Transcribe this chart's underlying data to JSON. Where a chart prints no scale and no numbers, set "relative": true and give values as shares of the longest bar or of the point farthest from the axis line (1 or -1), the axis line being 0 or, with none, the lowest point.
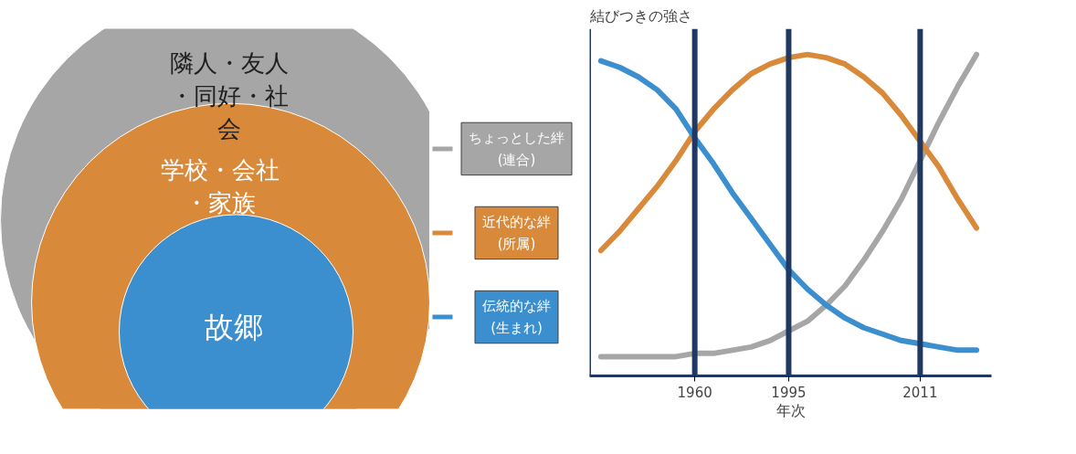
{
  "chart_data": [
    {
      "type": "other",
      "annotations": [
        "隣人・友人・同好・社会",
        "学校・会社・家族",
        "故郷"
      ]
    },
    {
      "type": "line",
      "relative": true,
      "ylabel": "結びつきの強さ",
      "xlabel": "年次",
      "legend": "left",
      "grid": false,
      "categories": [
        null,
        null,
        null,
        null,
        null,
        "1960",
        null,
        null,
        null,
        null,
        "1995",
        null,
        null,
        null,
        null,
        null,
        null,
        "2011",
        null,
        null,
        null
      ],
      "series": [
        {
          "name": "ちょっとした絆\n(連合)",
          "color": "#a6a6a6",
          "values": [
            0.06,
            0.06,
            0.06,
            0.06,
            0.06,
            0.07,
            0.07,
            0.08,
            0.09,
            0.11,
            0.14,
            0.17,
            0.22,
            0.28,
            0.36,
            0.45,
            0.55,
            0.67,
            0.79,
            0.9,
            1.0
          ]
        },
        {
          "name": "近代的な絆\n(所属)",
          "color": "#d9893a",
          "values": [
            0.39,
            0.45,
            0.52,
            0.59,
            0.67,
            0.76,
            0.83,
            0.89,
            0.94,
            0.97,
            0.99,
            1.0,
            0.99,
            0.97,
            0.93,
            0.88,
            0.81,
            0.73,
            0.65,
            0.55,
            0.46
          ]
        },
        {
          "name": "伝統的な絆\n(生まれ)",
          "color": "#3b8fcf",
          "values": [
            0.98,
            0.96,
            0.93,
            0.89,
            0.83,
            0.74,
            0.66,
            0.57,
            0.49,
            0.41,
            0.33,
            0.27,
            0.22,
            0.18,
            0.15,
            0.13,
            0.11,
            0.1,
            0.09,
            0.08,
            0.08
          ]
        }
      ],
      "ref_lines": [
        {
          "axis": "x",
          "value": "1960",
          "color": "#1f3864"
        },
        {
          "axis": "x",
          "value": "1995",
          "color": "#1f3864"
        },
        {
          "axis": "x",
          "value": "2011",
          "color": "#1f3864"
        }
      ]
    }
  ]
}
